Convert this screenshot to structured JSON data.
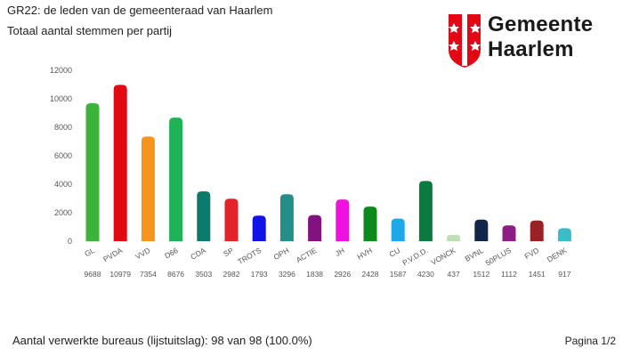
{
  "header": {
    "title": "GR22: de leden van de gemeenteraad van Haarlem",
    "subtitle": "Totaal aantal stemmen per partij"
  },
  "logo": {
    "line1": "Gemeente",
    "line2": "Haarlem",
    "color": "#e30613",
    "icon": "haarlem-coat-of-arms"
  },
  "footer": {
    "status": "Aantal verwerkte bureaus (lijstuitslag): 98 van 98 (100.0%)",
    "page": "Pagina 1/2"
  },
  "chart_data": {
    "type": "bar",
    "title": "",
    "xlabel": "",
    "ylabel": "",
    "ylim": [
      0,
      12000
    ],
    "yticks": [
      0,
      2000,
      4000,
      6000,
      8000,
      10000,
      12000
    ],
    "grid": false,
    "categories": [
      "GL",
      "PVDA",
      "VVD",
      "D66",
      "CDA",
      "SP",
      "TROTS",
      "OPH",
      "ACTIE",
      "JH",
      "HVH",
      "CU",
      "P.V.D.D.",
      "VONCK",
      "BVNL",
      "50PLUS",
      "FVD",
      "DENK"
    ],
    "values": [
      9688,
      10979,
      7354,
      8676,
      3503,
      2982,
      1793,
      3296,
      1838,
      2926,
      2428,
      1587,
      4230,
      437,
      1512,
      1112,
      1451,
      917
    ],
    "colors": [
      "#3db33b",
      "#e10a12",
      "#f7941d",
      "#1fb257",
      "#0c7a6b",
      "#e3222a",
      "#1012e8",
      "#268e88",
      "#82137e",
      "#f010e0",
      "#0e8a1c",
      "#1ea8e8",
      "#0b7a3e",
      "#bfe0b6",
      "#12264a",
      "#8e1c85",
      "#9a2224",
      "#3cbcc8"
    ]
  }
}
